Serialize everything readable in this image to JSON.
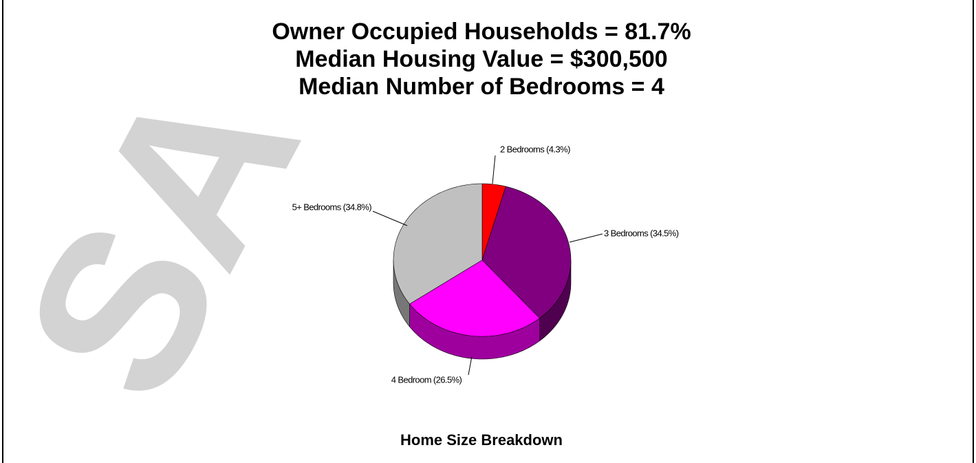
{
  "chart_data": {
    "type": "pie",
    "title_lines": [
      "Owner Occupied Households = 81.7%",
      "Median Housing Value = $300,500",
      "Median Number of Bedrooms = 4"
    ],
    "caption": "Home Size Breakdown",
    "watermark": "SA",
    "values": [
      4.3,
      34.5,
      26.5,
      34.8
    ],
    "value_labels": [
      "2 Bedrooms (4.3%)",
      "3 Bedrooms (34.5%)",
      "4 Bedroom (26.5%)",
      "5+ Bedrooms (34.8%)"
    ],
    "colors": [
      "#ff0000",
      "#800080",
      "#ff00ff",
      "#c0c0c0"
    ]
  }
}
